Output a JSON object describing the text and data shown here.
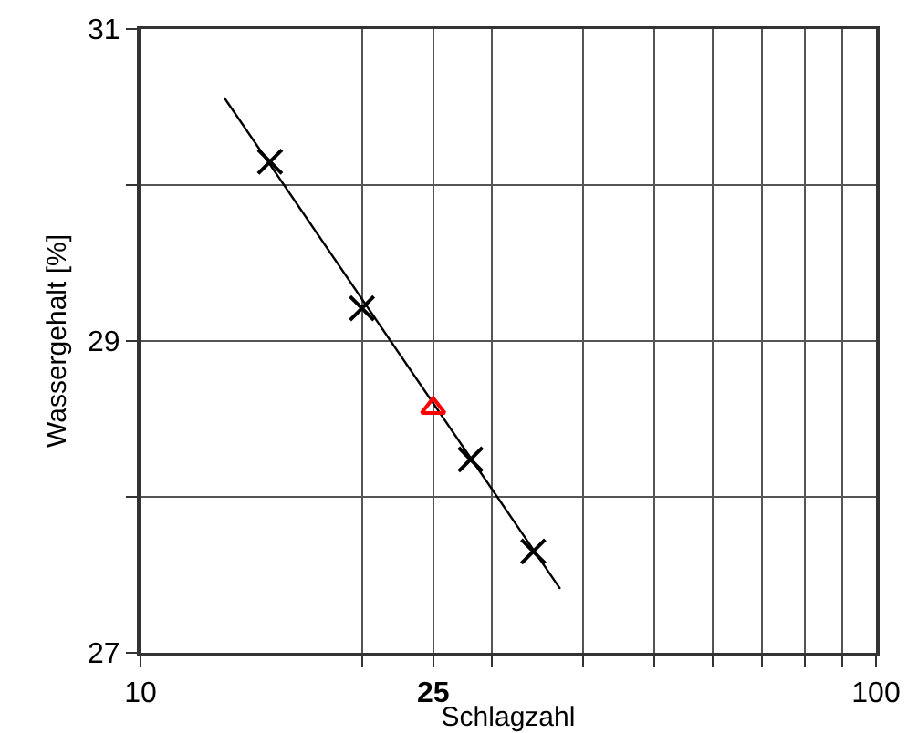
{
  "chart_data": {
    "type": "scatter",
    "xlabel": "Schlagzahl",
    "ylabel": "Wassergehalt [%]",
    "log": "x",
    "xlim": [
      10,
      100
    ],
    "xticks": [
      10,
      {
        "value": 20,
        "label": null
      },
      {
        "value": 25,
        "label": "25"
      },
      {
        "value": 30,
        "label": null
      },
      {
        "value": 40,
        "label": null
      },
      {
        "value": 50,
        "label": null
      },
      {
        "value": 60,
        "label": null
      },
      {
        "value": 70,
        "label": null
      },
      {
        "value": 80,
        "label": null
      },
      {
        "value": 90,
        "label": null
      },
      100
    ],
    "ylim": [
      27,
      31
    ],
    "yticks": [
      27,
      {
        "value": 28,
        "label": null
      },
      29,
      {
        "value": 30,
        "label": null
      },
      31
    ],
    "grid": true,
    "series": [
      {
        "type": "line",
        "color": "#000000",
        "marker": "none",
        "x": [
          13.0,
          37.2
        ],
        "values": [
          30.56,
          27.41
        ]
      },
      {
        "type": "scatter",
        "color": "#000000",
        "marker": "cross",
        "x": [
          15.0,
          20.0,
          28.1,
          34.2
        ],
        "values": [
          30.15,
          29.21,
          28.24,
          27.65
        ]
      },
      {
        "type": "scatter",
        "color": "#ff0000",
        "marker": "triangle",
        "x": [
          25
        ],
        "values": [
          28.57
        ]
      }
    ]
  }
}
